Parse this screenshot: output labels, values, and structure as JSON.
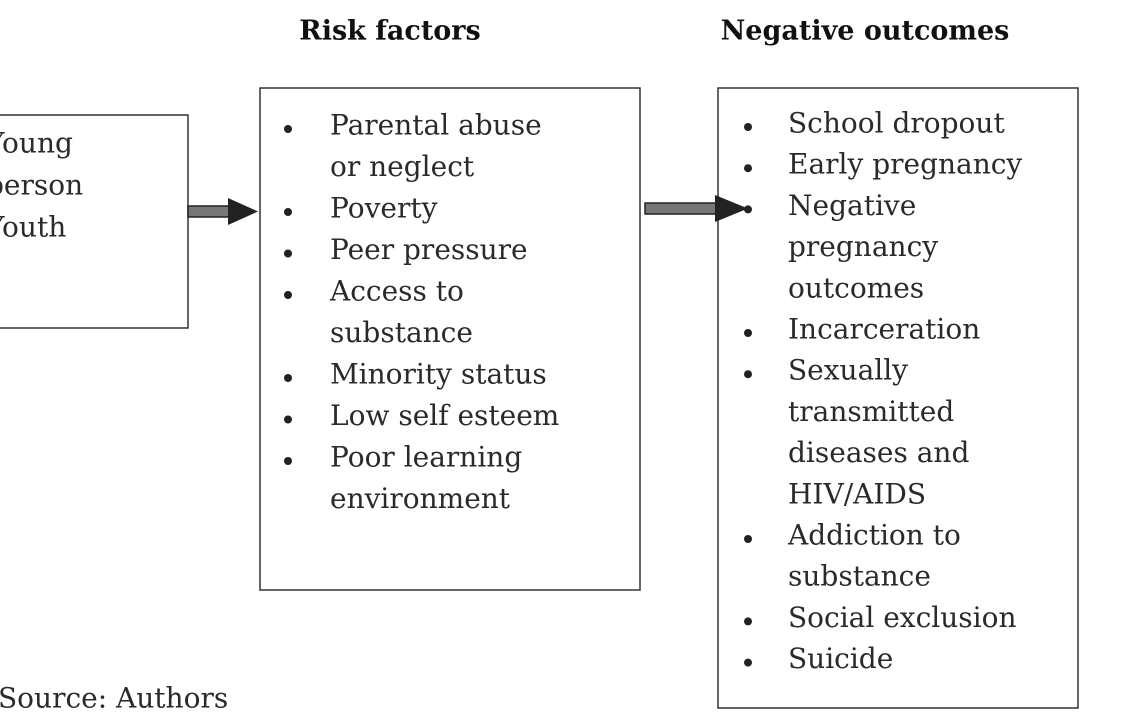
{
  "left_box": {
    "lines": [
      "Young",
      "person",
      "Youth"
    ]
  },
  "risk_factors": {
    "title": "Risk factors",
    "items": [
      [
        "Parental abuse",
        "or neglect"
      ],
      [
        "Poverty"
      ],
      [
        "Peer pressure"
      ],
      [
        "Access to",
        "substance"
      ],
      [
        "Minority status"
      ],
      [
        "Low self esteem"
      ],
      [
        "Poor learning",
        "environment"
      ]
    ]
  },
  "negative_outcomes": {
    "title": "Negative outcomes",
    "items": [
      [
        "School dropout"
      ],
      [
        "Early pregnancy"
      ],
      [
        "Negative",
        "pregnancy",
        "outcomes"
      ],
      [
        "Incarceration"
      ],
      [
        "Sexually",
        "transmitted",
        "diseases and",
        "HIV/AIDS"
      ],
      [
        "Addiction to",
        "substance"
      ],
      [
        "Social exclusion"
      ],
      [
        "Suicide"
      ]
    ]
  },
  "source": "Source: Authors"
}
